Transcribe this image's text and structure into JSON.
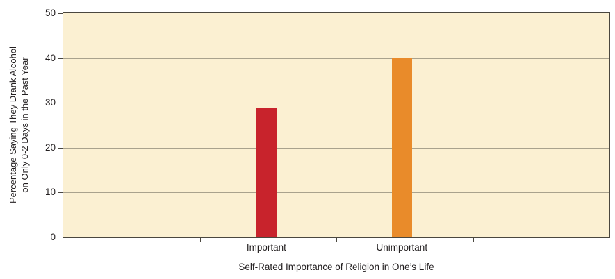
{
  "chart_data": {
    "type": "bar",
    "categories": [
      "Important",
      "Unimportant"
    ],
    "values": [
      29,
      40
    ],
    "bar_colors": [
      "#C8232C",
      "#E98B2A"
    ],
    "title": "",
    "xlabel": "Self-Rated Importance of Religion in One’s Life",
    "ylabel": "Percentage Saying They Drank Alcohol on Only 0-2 Days in the Past Year",
    "ylabel_lines": [
      "Percentage Saying They Drank Alcohol",
      "on Only 0-2 Days in the Past Year"
    ],
    "ylim": [
      0,
      50
    ],
    "yticks": [
      0,
      10,
      20,
      30,
      40,
      50
    ],
    "grid": true,
    "legend": false,
    "plot_background": "#FBF0D2"
  }
}
